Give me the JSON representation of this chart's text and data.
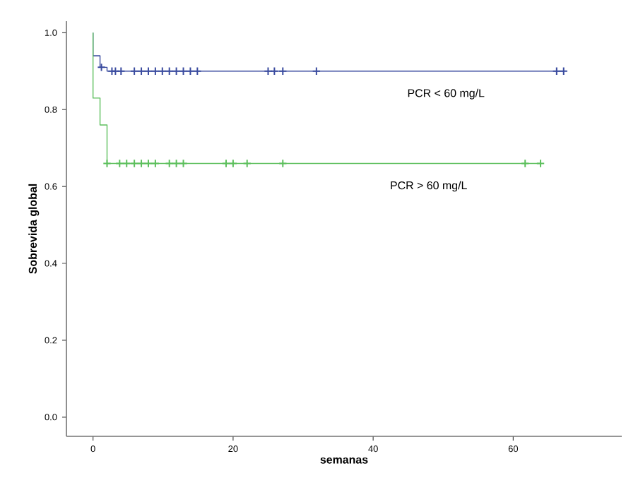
{
  "chart_data": {
    "type": "step",
    "xlabel": "semanas",
    "ylabel": "Sobrevida global",
    "xlim": [
      -3.8,
      75.5
    ],
    "ylim": [
      -0.05,
      1.03
    ],
    "xticks": [
      0,
      20,
      40,
      60
    ],
    "yticks": [
      {
        "value": 0,
        "label": "0.0"
      },
      {
        "value": 0.2,
        "label": "0.2"
      },
      {
        "value": 0.4,
        "label": "0.4"
      },
      {
        "value": 0.6,
        "label": "0.6"
      },
      {
        "value": 0.8,
        "label": "0.8"
      },
      {
        "value": 1.0,
        "label": "1.0"
      }
    ],
    "grid": false,
    "legend": false,
    "series": [
      {
        "name": "PCR < 60 mg/L",
        "color": "#3a4b9f",
        "x": [
          0,
          0,
          1,
          2,
          67.2
        ],
        "values": [
          1.0,
          0.94,
          0.91,
          0.9,
          0.9
        ]
      },
      {
        "name": "PCR > 60 mg/L",
        "color": "#5cbf5c",
        "x": [
          0,
          0,
          1,
          2,
          63.9
        ],
        "values": [
          1.0,
          0.83,
          0.76,
          0.66,
          0.66
        ]
      },
      {
        "type": "scatter",
        "marker": "cross",
        "color": "#3a4b9f",
        "x": [
          1.2,
          2.7,
          3.2,
          4.0,
          5.9,
          6.9,
          7.9,
          8.9,
          9.9,
          10.9,
          11.9,
          12.9,
          13.9,
          14.9,
          25.0,
          25.9,
          27.1,
          31.9,
          66.2,
          67.2
        ],
        "values": [
          0.91,
          0.9,
          0.9,
          0.9,
          0.9,
          0.9,
          0.9,
          0.9,
          0.9,
          0.9,
          0.9,
          0.9,
          0.9,
          0.9,
          0.9,
          0.9,
          0.9,
          0.9,
          0.9,
          0.9
        ]
      },
      {
        "type": "scatter",
        "marker": "cross",
        "color": "#5cbf5c",
        "x": [
          2.0,
          3.8,
          4.8,
          5.9,
          6.9,
          7.9,
          8.9,
          10.9,
          11.9,
          12.9,
          19.0,
          20.0,
          22.0,
          27.1,
          61.7,
          63.9
        ],
        "values": [
          0.66,
          0.66,
          0.66,
          0.66,
          0.66,
          0.66,
          0.66,
          0.66,
          0.66,
          0.66,
          0.66,
          0.66,
          0.66,
          0.66,
          0.66,
          0.66
        ]
      }
    ]
  }
}
